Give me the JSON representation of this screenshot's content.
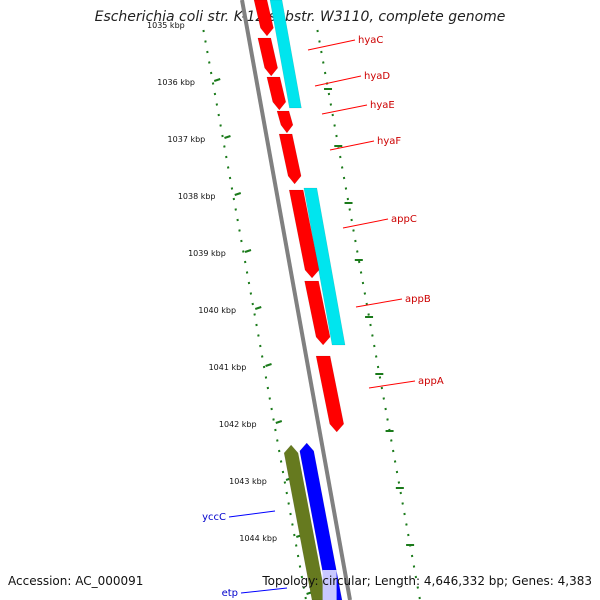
{
  "title": "Escherichia coli str. K-12 substr. W3110, complete genome",
  "accession": "Accession: AC_000091",
  "stats": "Topology: circular; Length: 4,646,332 bp; Genes: 4,383",
  "ticks": [
    "1035 kbp",
    "1036 kbp",
    "1037 kbp",
    "1038 kbp",
    "1039 kbp",
    "1040 kbp",
    "1041 kbp",
    "1042 kbp",
    "1043 kbp",
    "1044 kbp"
  ],
  "genes_forward": [
    "hyaC",
    "hyaD",
    "hyaE",
    "hyaF",
    "appC",
    "appB",
    "appA"
  ],
  "genes_reverse": [
    "yccC",
    "etp"
  ],
  "colors": {
    "forward_cds": "#ff0000",
    "cyan_track": "#00e5ee",
    "reverse_cds": "#0000ff",
    "green_track": "#667a1f",
    "backbone": "#808080",
    "tick": "#1a7a1a"
  }
}
